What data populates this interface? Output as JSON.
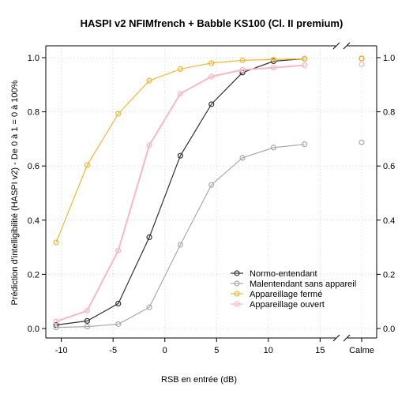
{
  "chart_data": {
    "type": "line",
    "title": "HASPI v2 NFIMfrench + Babble KS100 (Cl. II premium)",
    "xlabel": "RSB en entrée (dB)",
    "ylabel": "Prédiction d'intelligibilité (HASPI v2) - De 0 à 1 = 0 à 100%",
    "x": [
      -10.5,
      -7.5,
      -4.5,
      -1.5,
      1.5,
      4.5,
      7.5,
      10.5,
      13.5
    ],
    "x_ticks": [
      -10,
      -5,
      0,
      5,
      10,
      15
    ],
    "extra_x_label": "Calme",
    "xlim": [
      -11.5,
      16.5
    ],
    "ylim": [
      0,
      1
    ],
    "y_ticks": [
      "0.0",
      "0.2",
      "0.4",
      "0.6",
      "0.8",
      "1.0"
    ],
    "grid": true,
    "legend_position": "bottom-right",
    "series": [
      {
        "name": "Normo-entendant",
        "color": "#333333",
        "values": [
          0.013,
          0.028,
          0.092,
          0.337,
          0.638,
          0.828,
          0.945,
          0.987,
          0.996
        ],
        "calme": 0.997
      },
      {
        "name": "Malentendant sans appareil",
        "color": "#aaaaaa",
        "values": [
          0.004,
          0.007,
          0.016,
          0.078,
          0.309,
          0.53,
          0.63,
          0.668,
          0.68
        ],
        "calme": 0.687
      },
      {
        "name": "Appareillage fermé",
        "color": "#f5b731",
        "values": [
          0.318,
          0.603,
          0.793,
          0.915,
          0.958,
          0.98,
          0.99,
          0.993,
          0.996
        ],
        "calme": 0.997
      },
      {
        "name": "Appareillage ouvert",
        "color": "#f9b8c8",
        "values": [
          0.026,
          0.066,
          0.288,
          0.677,
          0.867,
          0.93,
          0.955,
          0.963,
          0.972
        ],
        "calme": 0.975
      }
    ]
  }
}
